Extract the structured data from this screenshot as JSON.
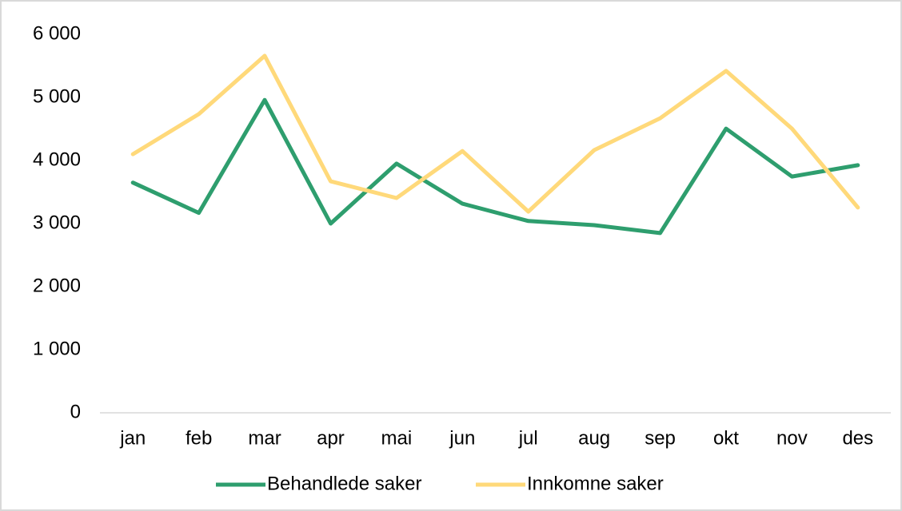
{
  "chart_data": {
    "type": "line",
    "categories": [
      "jan",
      "feb",
      "mar",
      "apr",
      "mai",
      "jun",
      "jul",
      "aug",
      "sep",
      "okt",
      "nov",
      "des"
    ],
    "series": [
      {
        "name": "Behandlede saker",
        "color": "#2e9e6e",
        "values": [
          3650,
          3170,
          4960,
          3000,
          3950,
          3315,
          3040,
          2975,
          2850,
          4505,
          3745,
          3925
        ]
      },
      {
        "name": "Innkomne saker",
        "color": "#ffd97a",
        "values": [
          4100,
          4735,
          5660,
          3670,
          3405,
          4150,
          3190,
          4165,
          4670,
          5420,
          4505,
          3255
        ]
      }
    ],
    "ylim": [
      0,
      6000
    ],
    "yticks": [
      {
        "value": 0,
        "label": "0"
      },
      {
        "value": 1000,
        "label": "1 000"
      },
      {
        "value": 2000,
        "label": "2 000"
      },
      {
        "value": 3000,
        "label": "3 000"
      },
      {
        "value": 4000,
        "label": "4 000"
      },
      {
        "value": 5000,
        "label": "5 000"
      },
      {
        "value": 6000,
        "label": "6 000"
      }
    ],
    "grid": false,
    "legend": "bottom"
  }
}
